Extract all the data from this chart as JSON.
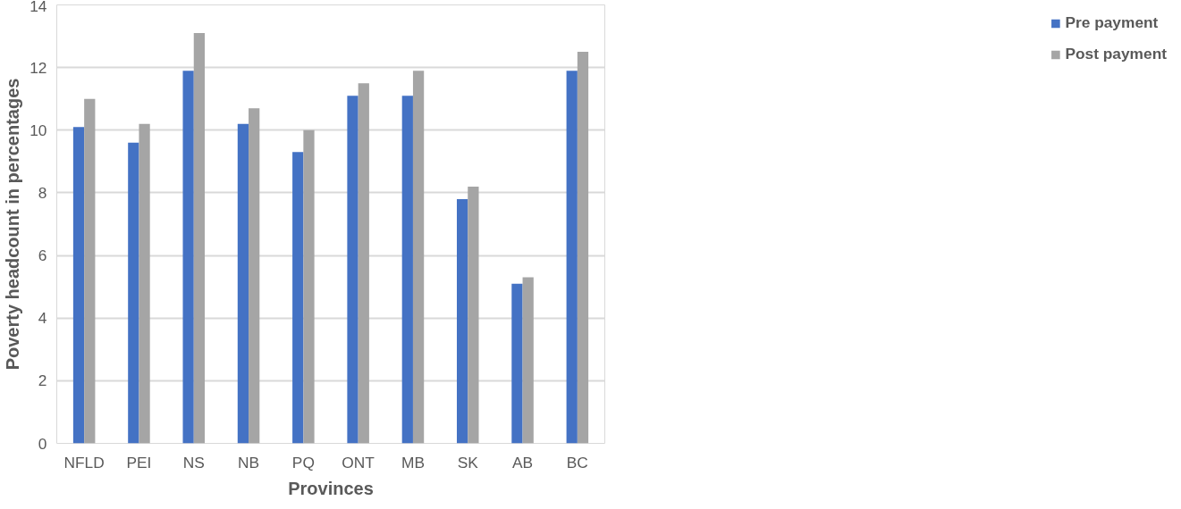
{
  "chart_data": {
    "type": "bar",
    "xlabel": "Provinces",
    "ylabel": "Poverty headcount in percentages",
    "categories": [
      "NFLD",
      "PEI",
      "NS",
      "NB",
      "PQ",
      "ONT",
      "MB",
      "SK",
      "AB",
      "BC"
    ],
    "series": [
      {
        "name": "Pre payment",
        "color": "#4472c4",
        "values": [
          10.1,
          9.6,
          11.9,
          10.2,
          9.3,
          11.1,
          11.1,
          7.8,
          5.1,
          11.9
        ]
      },
      {
        "name": "Post payment",
        "color": "#a5a5a5",
        "values": [
          11.0,
          10.2,
          13.1,
          10.7,
          10.0,
          11.5,
          11.9,
          8.2,
          5.3,
          12.5
        ]
      }
    ],
    "ylim": [
      0,
      14
    ],
    "yticks": [
      0,
      2,
      4,
      6,
      8,
      10,
      12,
      14
    ],
    "grid": "y",
    "legend": "right"
  }
}
